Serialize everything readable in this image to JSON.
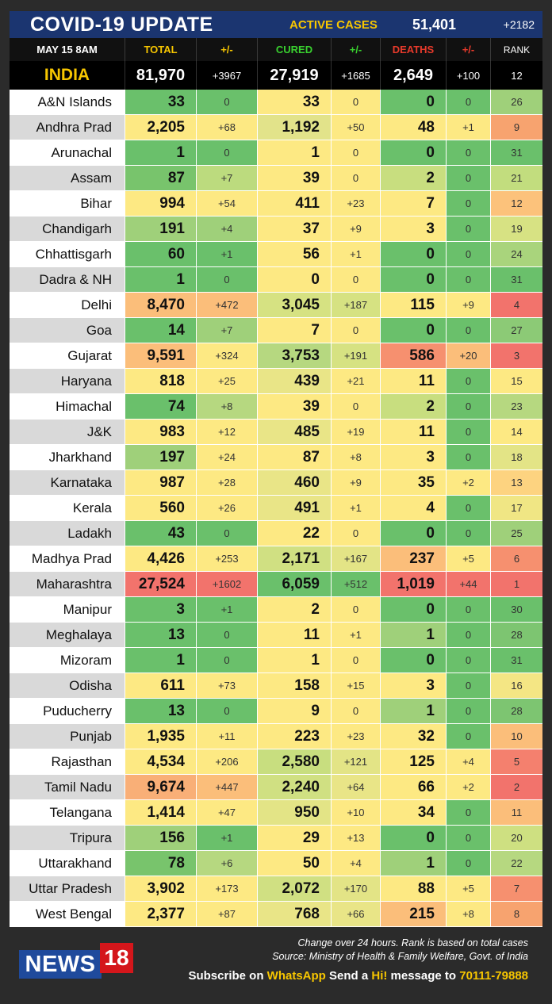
{
  "header": {
    "title": "COVID-19 UPDATE",
    "active_label": "ACTIVE CASES",
    "active_value": "51,401",
    "active_change": "+2182"
  },
  "columns": [
    "MAY 15  8AM",
    "TOTAL",
    "+/-",
    "CURED",
    "+/-",
    "DEATHS",
    "+/-",
    "RANK"
  ],
  "column_colors": [
    "#ffffff",
    "#f7c600",
    "#f7c600",
    "#39d12f",
    "#39d12f",
    "#e83a2b",
    "#e83a2b",
    "#ffffff"
  ],
  "india": {
    "name": "INDIA",
    "total": "81,970",
    "total_chg": "+3967",
    "cured": "27,919",
    "cured_chg": "+1685",
    "deaths": "2,649",
    "deaths_chg": "+100",
    "rank": "12"
  },
  "rows": [
    {
      "state": "A&N Islands",
      "total": "33",
      "total_chg": "0",
      "cured": "33",
      "cured_chg": "0",
      "deaths": "0",
      "deaths_chg": "0",
      "rank": "26",
      "c": [
        "#6ac06b",
        "#6ac06b",
        "#fde983",
        "#fde983",
        "#6ac06b",
        "#6ac06b",
        "#9fd07a"
      ]
    },
    {
      "state": "Andhra Prad",
      "total": "2,205",
      "total_chg": "+68",
      "cured": "1,192",
      "cured_chg": "+50",
      "deaths": "48",
      "deaths_chg": "+1",
      "rank": "9",
      "c": [
        "#fde983",
        "#fde983",
        "#e2e38a",
        "#fde983",
        "#fde983",
        "#fde983",
        "#f7a36f"
      ]
    },
    {
      "state": "Arunachal",
      "total": "1",
      "total_chg": "0",
      "cured": "1",
      "cured_chg": "0",
      "deaths": "0",
      "deaths_chg": "0",
      "rank": "31",
      "c": [
        "#6ac06b",
        "#6ac06b",
        "#fde983",
        "#fde983",
        "#6ac06b",
        "#6ac06b",
        "#6ac06b"
      ]
    },
    {
      "state": "Assam",
      "total": "87",
      "total_chg": "+7",
      "cured": "39",
      "cured_chg": "0",
      "deaths": "2",
      "deaths_chg": "0",
      "rank": "21",
      "c": [
        "#78c46c",
        "#bcdb7e",
        "#fde983",
        "#fde983",
        "#c8de7f",
        "#6ac06b",
        "#c2dd7e"
      ]
    },
    {
      "state": "Bihar",
      "total": "994",
      "total_chg": "+54",
      "cured": "411",
      "cured_chg": "+23",
      "deaths": "7",
      "deaths_chg": "0",
      "rank": "12",
      "c": [
        "#fde983",
        "#fde983",
        "#fde983",
        "#fde983",
        "#fde983",
        "#6ac06b",
        "#fcc27b"
      ]
    },
    {
      "state": "Chandigarh",
      "total": "191",
      "total_chg": "+4",
      "cured": "37",
      "cured_chg": "+9",
      "deaths": "3",
      "deaths_chg": "0",
      "rank": "19",
      "c": [
        "#9fd07a",
        "#9fd07a",
        "#fde983",
        "#fde983",
        "#fde983",
        "#6ac06b",
        "#d7e283"
      ]
    },
    {
      "state": "Chhattisgarh",
      "total": "60",
      "total_chg": "+1",
      "cured": "56",
      "cured_chg": "+1",
      "deaths": "0",
      "deaths_chg": "0",
      "rank": "24",
      "c": [
        "#6ac06b",
        "#6ac06b",
        "#fde983",
        "#fde983",
        "#6ac06b",
        "#6ac06b",
        "#a9d47c"
      ]
    },
    {
      "state": "Dadra & NH",
      "total": "1",
      "total_chg": "0",
      "cured": "0",
      "cured_chg": "0",
      "deaths": "0",
      "deaths_chg": "0",
      "rank": "31",
      "c": [
        "#6ac06b",
        "#6ac06b",
        "#fde983",
        "#fde983",
        "#6ac06b",
        "#6ac06b",
        "#6ac06b"
      ]
    },
    {
      "state": "Delhi",
      "total": "8,470",
      "total_chg": "+472",
      "cured": "3,045",
      "cured_chg": "+187",
      "deaths": "115",
      "deaths_chg": "+9",
      "rank": "4",
      "c": [
        "#fbbe7a",
        "#fbbe7a",
        "#d6e282",
        "#d6e282",
        "#fde983",
        "#fde983",
        "#f2736c"
      ]
    },
    {
      "state": "Goa",
      "total": "14",
      "total_chg": "+7",
      "cured": "7",
      "cured_chg": "0",
      "deaths": "0",
      "deaths_chg": "0",
      "rank": "27",
      "c": [
        "#6ac06b",
        "#9fd07a",
        "#fde983",
        "#fde983",
        "#6ac06b",
        "#6ac06b",
        "#8cca76"
      ]
    },
    {
      "state": "Gujarat",
      "total": "9,591",
      "total_chg": "+324",
      "cured": "3,753",
      "cured_chg": "+191",
      "deaths": "586",
      "deaths_chg": "+20",
      "rank": "3",
      "c": [
        "#fbbe7a",
        "#fde983",
        "#b6d880",
        "#d6e282",
        "#f6906f",
        "#fbbe7a",
        "#f2736c"
      ]
    },
    {
      "state": "Haryana",
      "total": "818",
      "total_chg": "+25",
      "cured": "439",
      "cured_chg": "+21",
      "deaths": "11",
      "deaths_chg": "0",
      "rank": "15",
      "c": [
        "#fde983",
        "#fde983",
        "#e9e587",
        "#fde983",
        "#fde983",
        "#6ac06b",
        "#fde983"
      ]
    },
    {
      "state": "Himachal",
      "total": "74",
      "total_chg": "+8",
      "cured": "39",
      "cured_chg": "0",
      "deaths": "2",
      "deaths_chg": "0",
      "rank": "23",
      "c": [
        "#6ac06b",
        "#b6d880",
        "#fde983",
        "#fde983",
        "#c8de7f",
        "#6ac06b",
        "#b6d880"
      ]
    },
    {
      "state": "J&K",
      "total": "983",
      "total_chg": "+12",
      "cured": "485",
      "cured_chg": "+19",
      "deaths": "11",
      "deaths_chg": "0",
      "rank": "14",
      "c": [
        "#fde983",
        "#fde983",
        "#e9e587",
        "#fde983",
        "#fde983",
        "#6ac06b",
        "#fde983"
      ]
    },
    {
      "state": "Jharkhand",
      "total": "197",
      "total_chg": "+24",
      "cured": "87",
      "cured_chg": "+8",
      "deaths": "3",
      "deaths_chg": "0",
      "rank": "18",
      "c": [
        "#9fd07a",
        "#fde983",
        "#fde983",
        "#fde983",
        "#fde983",
        "#6ac06b",
        "#e3e486"
      ]
    },
    {
      "state": "Karnataka",
      "total": "987",
      "total_chg": "+28",
      "cured": "460",
      "cured_chg": "+9",
      "deaths": "35",
      "deaths_chg": "+2",
      "rank": "13",
      "c": [
        "#fde983",
        "#fde983",
        "#e9e587",
        "#fde983",
        "#fde983",
        "#fde983",
        "#fdd380"
      ]
    },
    {
      "state": "Kerala",
      "total": "560",
      "total_chg": "+26",
      "cured": "491",
      "cured_chg": "+1",
      "deaths": "4",
      "deaths_chg": "0",
      "rank": "17",
      "c": [
        "#fde983",
        "#fde983",
        "#e9e587",
        "#fde983",
        "#fde983",
        "#6ac06b",
        "#f0e684"
      ]
    },
    {
      "state": "Ladakh",
      "total": "43",
      "total_chg": "0",
      "cured": "22",
      "cured_chg": "0",
      "deaths": "0",
      "deaths_chg": "0",
      "rank": "25",
      "c": [
        "#6ac06b",
        "#6ac06b",
        "#fde983",
        "#fde983",
        "#6ac06b",
        "#6ac06b",
        "#9fd07a"
      ]
    },
    {
      "state": "Madhya Prad",
      "total": "4,426",
      "total_chg": "+253",
      "cured": "2,171",
      "cured_chg": "+167",
      "deaths": "237",
      "deaths_chg": "+5",
      "rank": "6",
      "c": [
        "#fde983",
        "#fde983",
        "#d0e082",
        "#e3e486",
        "#fbbe7a",
        "#fde983",
        "#f6906f"
      ]
    },
    {
      "state": "Maharashtra",
      "total": "27,524",
      "total_chg": "+1602",
      "cured": "6,059",
      "cured_chg": "+512",
      "deaths": "1,019",
      "deaths_chg": "+44",
      "rank": "1",
      "c": [
        "#f2736c",
        "#f2736c",
        "#6ac06b",
        "#6ac06b",
        "#f2736c",
        "#f2736c",
        "#f2736c"
      ]
    },
    {
      "state": "Manipur",
      "total": "3",
      "total_chg": "+1",
      "cured": "2",
      "cured_chg": "0",
      "deaths": "0",
      "deaths_chg": "0",
      "rank": "30",
      "c": [
        "#6ac06b",
        "#6ac06b",
        "#fde983",
        "#fde983",
        "#6ac06b",
        "#6ac06b",
        "#6ac06b"
      ]
    },
    {
      "state": "Meghalaya",
      "total": "13",
      "total_chg": "0",
      "cured": "11",
      "cured_chg": "+1",
      "deaths": "1",
      "deaths_chg": "0",
      "rank": "28",
      "c": [
        "#6ac06b",
        "#6ac06b",
        "#fde983",
        "#fde983",
        "#9fd07a",
        "#6ac06b",
        "#7dc571"
      ]
    },
    {
      "state": "Mizoram",
      "total": "1",
      "total_chg": "0",
      "cured": "1",
      "cured_chg": "0",
      "deaths": "0",
      "deaths_chg": "0",
      "rank": "31",
      "c": [
        "#6ac06b",
        "#6ac06b",
        "#fde983",
        "#fde983",
        "#6ac06b",
        "#6ac06b",
        "#6ac06b"
      ]
    },
    {
      "state": "Odisha",
      "total": "611",
      "total_chg": "+73",
      "cured": "158",
      "cured_chg": "+15",
      "deaths": "3",
      "deaths_chg": "0",
      "rank": "16",
      "c": [
        "#fde983",
        "#fde983",
        "#fde983",
        "#fde983",
        "#fde983",
        "#6ac06b",
        "#f4e684"
      ]
    },
    {
      "state": "Puducherry",
      "total": "13",
      "total_chg": "0",
      "cured": "9",
      "cured_chg": "0",
      "deaths": "1",
      "deaths_chg": "0",
      "rank": "28",
      "c": [
        "#6ac06b",
        "#6ac06b",
        "#fde983",
        "#fde983",
        "#9fd07a",
        "#6ac06b",
        "#7dc571"
      ]
    },
    {
      "state": "Punjab",
      "total": "1,935",
      "total_chg": "+11",
      "cured": "223",
      "cured_chg": "+23",
      "deaths": "32",
      "deaths_chg": "0",
      "rank": "10",
      "c": [
        "#fde983",
        "#fde983",
        "#fde983",
        "#fde983",
        "#fde983",
        "#6ac06b",
        "#fbbe7a"
      ]
    },
    {
      "state": "Rajasthan",
      "total": "4,534",
      "total_chg": "+206",
      "cured": "2,580",
      "cured_chg": "+121",
      "deaths": "125",
      "deaths_chg": "+4",
      "rank": "5",
      "c": [
        "#fde983",
        "#fde983",
        "#c8de7f",
        "#e3e486",
        "#fde983",
        "#fde983",
        "#f4806e"
      ]
    },
    {
      "state": "Tamil Nadu",
      "total": "9,674",
      "total_chg": "+447",
      "cured": "2,240",
      "cured_chg": "+64",
      "deaths": "66",
      "deaths_chg": "+2",
      "rank": "2",
      "c": [
        "#f9af77",
        "#fbbe7a",
        "#d0e082",
        "#e9e587",
        "#fde983",
        "#fde983",
        "#f2736c"
      ]
    },
    {
      "state": "Telangana",
      "total": "1,414",
      "total_chg": "+47",
      "cured": "950",
      "cured_chg": "+10",
      "deaths": "34",
      "deaths_chg": "0",
      "rank": "11",
      "c": [
        "#fde983",
        "#fde983",
        "#e3e486",
        "#fde983",
        "#fde983",
        "#6ac06b",
        "#fbbe7a"
      ]
    },
    {
      "state": "Tripura",
      "total": "156",
      "total_chg": "+1",
      "cured": "29",
      "cured_chg": "+13",
      "deaths": "0",
      "deaths_chg": "0",
      "rank": "20",
      "c": [
        "#9fd07a",
        "#6ac06b",
        "#fde983",
        "#fde983",
        "#6ac06b",
        "#6ac06b",
        "#cee081"
      ]
    },
    {
      "state": "Uttarakhand",
      "total": "78",
      "total_chg": "+6",
      "cured": "50",
      "cured_chg": "+4",
      "deaths": "1",
      "deaths_chg": "0",
      "rank": "22",
      "c": [
        "#78c46c",
        "#b6d880",
        "#fde983",
        "#fde983",
        "#9fd07a",
        "#6ac06b",
        "#b6d880"
      ]
    },
    {
      "state": "Uttar Pradesh",
      "total": "3,902",
      "total_chg": "+173",
      "cured": "2,072",
      "cured_chg": "+170",
      "deaths": "88",
      "deaths_chg": "+5",
      "rank": "7",
      "c": [
        "#fde983",
        "#fde983",
        "#d0e082",
        "#e3e486",
        "#fde983",
        "#fde983",
        "#f6906f"
      ]
    },
    {
      "state": "West Bengal",
      "total": "2,377",
      "total_chg": "+87",
      "cured": "768",
      "cured_chg": "+66",
      "deaths": "215",
      "deaths_chg": "+8",
      "rank": "8",
      "c": [
        "#fde983",
        "#fde983",
        "#e9e587",
        "#e9e587",
        "#fbbe7a",
        "#fde983",
        "#f7a36f"
      ]
    }
  ],
  "row_label_colors": [
    "#ffffff",
    "#d9d9d9"
  ],
  "footer": {
    "logo_text": "NEWS",
    "logo_number": "18",
    "note1": "Change over 24 hours. Rank is based on total cases",
    "note2": "Source: Ministry of Health & Family Welfare, Govt. of India",
    "sub_a": "Subscribe on ",
    "sub_b": "WhatsApp",
    "sub_c": " Send a ",
    "sub_d": "Hi!",
    "sub_e": " message to ",
    "sub_f": "70111-79888"
  }
}
